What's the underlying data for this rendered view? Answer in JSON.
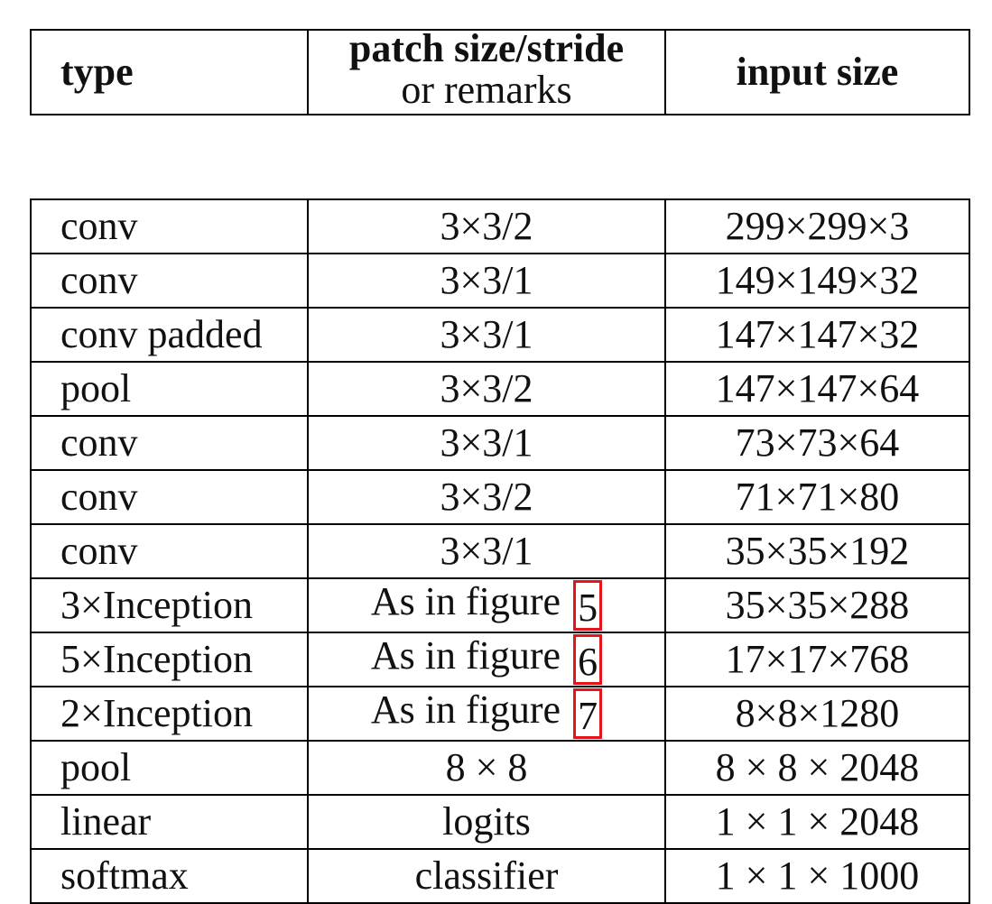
{
  "header": {
    "type": "type",
    "patch_line1": "patch size/stride",
    "patch_line2": "or remarks",
    "input": "input size"
  },
  "rows": [
    {
      "type": "conv",
      "patch": "3×3/2",
      "input": "299×299×3"
    },
    {
      "type": "conv",
      "patch": "3×3/1",
      "input": "149×149×32"
    },
    {
      "type": "conv padded",
      "patch": "3×3/1",
      "input": "147×147×32"
    },
    {
      "type": "pool",
      "patch": "3×3/2",
      "input": "147×147×64"
    },
    {
      "type": "conv",
      "patch": "3×3/1",
      "input": "73×73×64"
    },
    {
      "type": "conv",
      "patch": "3×3/2",
      "input": "71×71×80"
    },
    {
      "type": "conv",
      "patch": "3×3/1",
      "input": "35×35×192"
    },
    {
      "type": "3×Inception",
      "patch": "As in figure",
      "ref": "5",
      "input": "35×35×288"
    },
    {
      "type": "5×Inception",
      "patch": "As in figure",
      "ref": "6",
      "input": "17×17×768"
    },
    {
      "type": "2×Inception",
      "patch": "As in figure",
      "ref": "7",
      "input": "8×8×1280"
    },
    {
      "type": "pool",
      "patch": "8 × 8",
      "input": "8 × 8 × 2048"
    },
    {
      "type": "linear",
      "patch": "logits",
      "input": "1 × 1 × 2048"
    },
    {
      "type": "softmax",
      "patch": "classifier",
      "input": "1 × 1 × 1000"
    }
  ],
  "colors": {
    "highlight_box": "#e3151a",
    "border": "#000000"
  }
}
